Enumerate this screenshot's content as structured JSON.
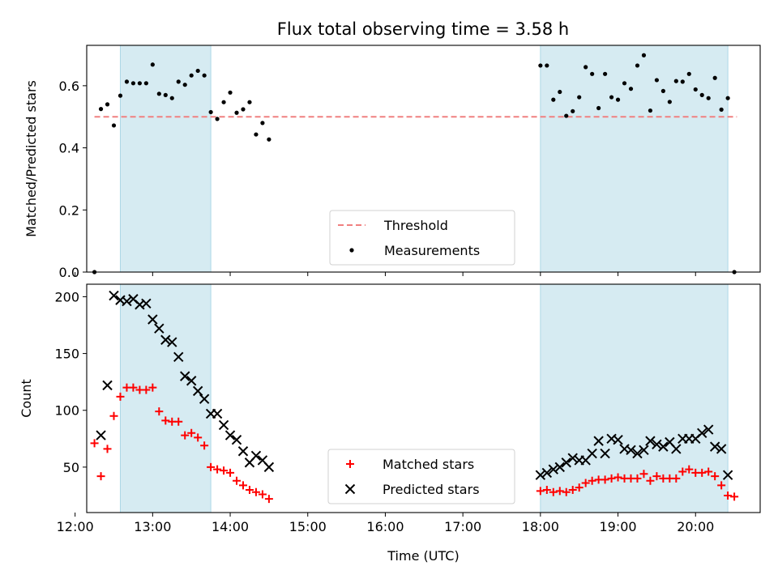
{
  "title": "Flux total observing time = 3.58 h",
  "colors": {
    "highlight": "#add8e6",
    "threshold": "#f08080",
    "measurements": "#000000",
    "matched": "#ff0000",
    "predicted": "#000000"
  },
  "chart_data": [
    {
      "type": "scatter",
      "ylabel": "Matched/Predicted stars",
      "xlabel": "",
      "xlim": [
        "12:09",
        "20:50"
      ],
      "ylim": [
        0,
        0.73
      ],
      "yticks": [
        0.0,
        0.2,
        0.4,
        0.6
      ],
      "ytick_labels": [
        "0.0",
        "0.2",
        "0.4",
        "0.6"
      ],
      "xticks": [
        "12:00",
        "13:00",
        "14:00",
        "15:00",
        "16:00",
        "17:00",
        "18:00",
        "19:00",
        "20:00"
      ],
      "show_xtick_labels": false,
      "highlight_spans": [
        [
          "12:35",
          "13:45"
        ],
        [
          "18:00",
          "20:25"
        ]
      ],
      "threshold": {
        "value": 0.5,
        "x_range": [
          "12:15",
          "20:32"
        ],
        "label": "Threshold"
      },
      "legend_position": "lower-center",
      "series": [
        {
          "name": "Measurements",
          "points": [
            [
              "12:15",
              0.0
            ],
            [
              "12:20",
              0.525
            ],
            [
              "12:25",
              0.54
            ],
            [
              "12:30",
              0.472
            ],
            [
              "12:35",
              0.568
            ],
            [
              "12:40",
              0.613
            ],
            [
              "12:45",
              0.608
            ],
            [
              "12:50",
              0.608
            ],
            [
              "12:55",
              0.608
            ],
            [
              "13:00",
              0.668
            ],
            [
              "13:05",
              0.574
            ],
            [
              "13:10",
              0.57
            ],
            [
              "13:15",
              0.56
            ],
            [
              "13:20",
              0.613
            ],
            [
              "13:25",
              0.603
            ],
            [
              "13:30",
              0.633
            ],
            [
              "13:35",
              0.648
            ],
            [
              "13:40",
              0.633
            ],
            [
              "13:45",
              0.515
            ],
            [
              "13:50",
              0.493
            ],
            [
              "13:55",
              0.547
            ],
            [
              "14:00",
              0.578
            ],
            [
              "14:05",
              0.513
            ],
            [
              "14:10",
              0.524
            ],
            [
              "14:15",
              0.547
            ],
            [
              "14:20",
              0.443
            ],
            [
              "14:25",
              0.48
            ],
            [
              "14:30",
              0.427
            ],
            [
              "18:00",
              0.665
            ],
            [
              "18:05",
              0.665
            ],
            [
              "18:10",
              0.555
            ],
            [
              "18:15",
              0.58
            ],
            [
              "18:20",
              0.503
            ],
            [
              "18:25",
              0.518
            ],
            [
              "18:30",
              0.563
            ],
            [
              "18:35",
              0.66
            ],
            [
              "18:40",
              0.638
            ],
            [
              "18:45",
              0.528
            ],
            [
              "18:50",
              0.638
            ],
            [
              "18:55",
              0.563
            ],
            [
              "19:00",
              0.555
            ],
            [
              "19:05",
              0.608
            ],
            [
              "19:10",
              0.59
            ],
            [
              "19:15",
              0.665
            ],
            [
              "19:20",
              0.698
            ],
            [
              "19:25",
              0.52
            ],
            [
              "19:30",
              0.618
            ],
            [
              "19:35",
              0.583
            ],
            [
              "19:40",
              0.548
            ],
            [
              "19:45",
              0.615
            ],
            [
              "19:50",
              0.613
            ],
            [
              "19:55",
              0.638
            ],
            [
              "20:00",
              0.588
            ],
            [
              "20:05",
              0.57
            ],
            [
              "20:10",
              0.56
            ],
            [
              "20:15",
              0.625
            ],
            [
              "20:20",
              0.523
            ],
            [
              "20:25",
              0.56
            ],
            [
              "20:30",
              0.0
            ]
          ]
        }
      ]
    },
    {
      "type": "scatter",
      "ylabel": "Count",
      "xlabel": "Time (UTC)",
      "xlim": [
        "12:09",
        "20:50"
      ],
      "ylim": [
        10,
        211
      ],
      "yticks": [
        50,
        100,
        150,
        200
      ],
      "ytick_labels": [
        "50",
        "100",
        "150",
        "200"
      ],
      "xticks": [
        "12:00",
        "13:00",
        "14:00",
        "15:00",
        "16:00",
        "17:00",
        "18:00",
        "19:00",
        "20:00"
      ],
      "show_xtick_labels": true,
      "highlight_spans": [
        [
          "12:35",
          "13:45"
        ],
        [
          "18:00",
          "20:25"
        ]
      ],
      "legend_position": "lower-center",
      "series": [
        {
          "name": "Matched stars",
          "points": [
            [
              "12:15",
              71
            ],
            [
              "12:20",
              42
            ],
            [
              "12:25",
              66
            ],
            [
              "12:30",
              95
            ],
            [
              "12:35",
              112
            ],
            [
              "12:40",
              120
            ],
            [
              "12:45",
              120
            ],
            [
              "12:50",
              118
            ],
            [
              "12:55",
              118
            ],
            [
              "13:00",
              120
            ],
            [
              "13:05",
              99
            ],
            [
              "13:10",
              91
            ],
            [
              "13:15",
              90
            ],
            [
              "13:20",
              90
            ],
            [
              "13:25",
              78
            ],
            [
              "13:30",
              80
            ],
            [
              "13:35",
              76
            ],
            [
              "13:40",
              69
            ],
            [
              "13:45",
              50
            ],
            [
              "13:50",
              48
            ],
            [
              "13:55",
              47
            ],
            [
              "14:00",
              45
            ],
            [
              "14:05",
              38
            ],
            [
              "14:10",
              34
            ],
            [
              "14:15",
              30
            ],
            [
              "14:20",
              28
            ],
            [
              "14:25",
              26
            ],
            [
              "14:30",
              22
            ],
            [
              "18:00",
              29
            ],
            [
              "18:05",
              30
            ],
            [
              "18:10",
              28
            ],
            [
              "18:15",
              29
            ],
            [
              "18:20",
              28
            ],
            [
              "18:25",
              30
            ],
            [
              "18:30",
              32
            ],
            [
              "18:35",
              36
            ],
            [
              "18:40",
              38
            ],
            [
              "18:45",
              39
            ],
            [
              "18:50",
              39
            ],
            [
              "18:55",
              40
            ],
            [
              "19:00",
              41
            ],
            [
              "19:05",
              40
            ],
            [
              "19:10",
              40
            ],
            [
              "19:15",
              40
            ],
            [
              "19:20",
              44
            ],
            [
              "19:25",
              38
            ],
            [
              "19:30",
              42
            ],
            [
              "19:35",
              40
            ],
            [
              "19:40",
              40
            ],
            [
              "19:45",
              40
            ],
            [
              "19:50",
              46
            ],
            [
              "19:55",
              48
            ],
            [
              "20:00",
              45
            ],
            [
              "20:05",
              45
            ],
            [
              "20:10",
              46
            ],
            [
              "20:15",
              42
            ],
            [
              "20:20",
              34
            ],
            [
              "20:25",
              25
            ],
            [
              "20:30",
              24
            ]
          ]
        },
        {
          "name": "Predicted stars",
          "points": [
            [
              "12:20",
              78
            ],
            [
              "12:25",
              122
            ],
            [
              "12:30",
              201
            ],
            [
              "12:35",
              197
            ],
            [
              "12:40",
              196
            ],
            [
              "12:45",
              198
            ],
            [
              "12:50",
              193
            ],
            [
              "12:55",
              194
            ],
            [
              "13:00",
              180
            ],
            [
              "13:05",
              172
            ],
            [
              "13:10",
              162
            ],
            [
              "13:15",
              160
            ],
            [
              "13:20",
              147
            ],
            [
              "13:25",
              130
            ],
            [
              "13:30",
              126
            ],
            [
              "13:35",
              117
            ],
            [
              "13:40",
              110
            ],
            [
              "13:45",
              97
            ],
            [
              "13:50",
              97
            ],
            [
              "13:55",
              87
            ],
            [
              "14:00",
              78
            ],
            [
              "14:05",
              74
            ],
            [
              "14:10",
              64
            ],
            [
              "14:15",
              54
            ],
            [
              "14:20",
              60
            ],
            [
              "14:25",
              56
            ],
            [
              "14:30",
              50
            ],
            [
              "18:00",
              43
            ],
            [
              "18:05",
              45
            ],
            [
              "18:10",
              48
            ],
            [
              "18:15",
              50
            ],
            [
              "18:20",
              54
            ],
            [
              "18:25",
              58
            ],
            [
              "18:30",
              56
            ],
            [
              "18:35",
              56
            ],
            [
              "18:40",
              62
            ],
            [
              "18:45",
              73
            ],
            [
              "18:50",
              62
            ],
            [
              "18:55",
              75
            ],
            [
              "19:00",
              74
            ],
            [
              "19:05",
              66
            ],
            [
              "19:10",
              65
            ],
            [
              "19:15",
              62
            ],
            [
              "19:20",
              65
            ],
            [
              "19:25",
              73
            ],
            [
              "19:30",
              70
            ],
            [
              "19:35",
              68
            ],
            [
              "19:40",
              72
            ],
            [
              "19:45",
              66
            ],
            [
              "19:50",
              75
            ],
            [
              "19:55",
              75
            ],
            [
              "20:00",
              75
            ],
            [
              "20:05",
              80
            ],
            [
              "20:10",
              83
            ],
            [
              "20:15",
              68
            ],
            [
              "20:20",
              66
            ],
            [
              "20:25",
              43
            ]
          ]
        }
      ]
    }
  ]
}
